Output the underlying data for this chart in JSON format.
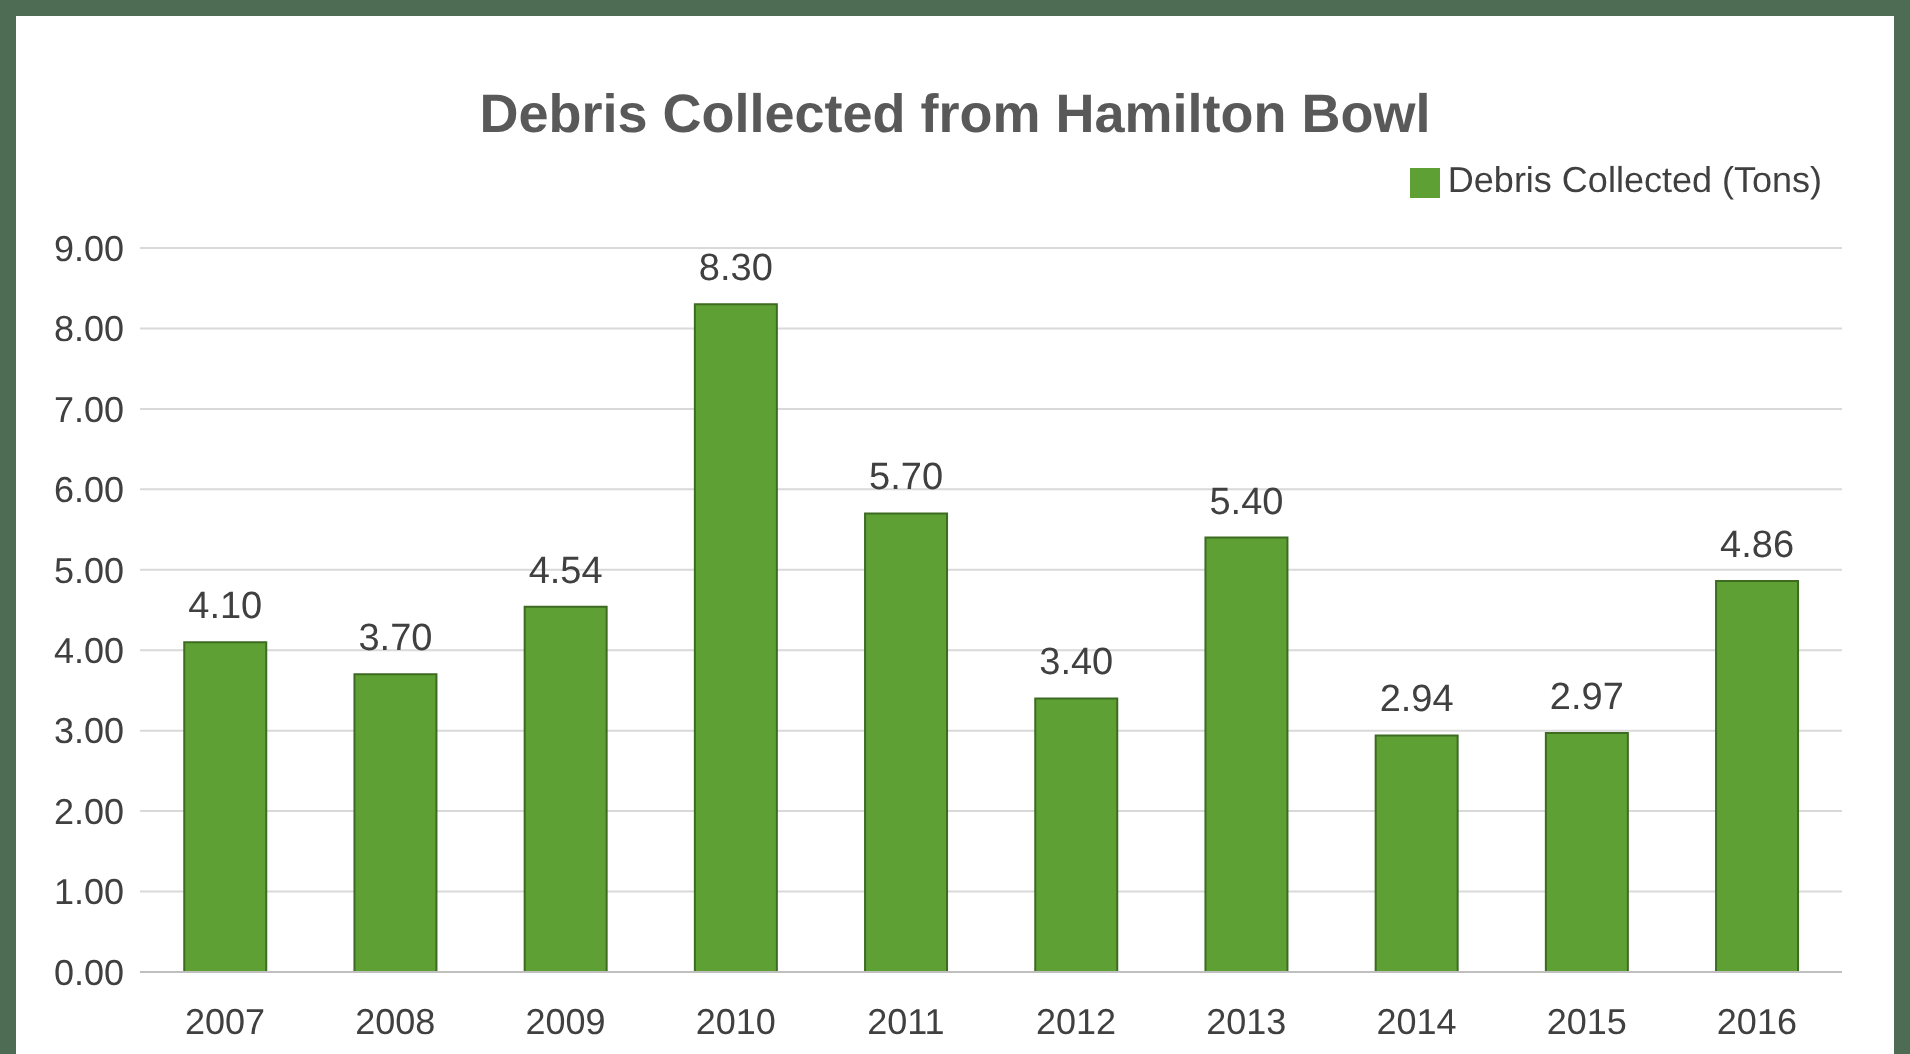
{
  "chart_data": {
    "type": "bar",
    "title": "Debris Collected from Hamilton Bowl",
    "categories": [
      "2007",
      "2008",
      "2009",
      "2010",
      "2011",
      "2012",
      "2013",
      "2014",
      "2015",
      "2016"
    ],
    "series": [
      {
        "name": "Debris Collected (Tons)",
        "color": "#5fa035",
        "values": [
          4.1,
          3.7,
          4.54,
          8.3,
          5.7,
          3.4,
          5.4,
          2.94,
          2.97,
          4.86
        ],
        "value_labels": [
          "4.10",
          "3.70",
          "4.54",
          "8.30",
          "5.70",
          "3.40",
          "5.40",
          "2.94",
          "2.97",
          "4.86"
        ]
      }
    ],
    "ylim": [
      0,
      9
    ],
    "yticks": [
      {
        "value": 0,
        "label": "0.00"
      },
      {
        "value": 1,
        "label": "1.00"
      },
      {
        "value": 2,
        "label": "2.00"
      },
      {
        "value": 3,
        "label": "3.00"
      },
      {
        "value": 4,
        "label": "4.00"
      },
      {
        "value": 5,
        "label": "5.00"
      },
      {
        "value": 6,
        "label": "6.00"
      },
      {
        "value": 7,
        "label": "7.00"
      },
      {
        "value": 8,
        "label": "8.00"
      },
      {
        "value": 9,
        "label": "9.00"
      }
    ],
    "grid": "y",
    "legend": "top right"
  }
}
